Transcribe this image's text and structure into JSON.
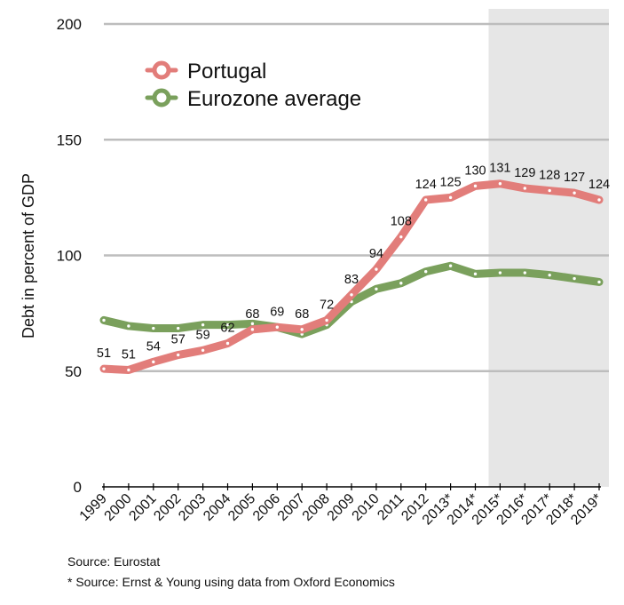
{
  "chart_data": {
    "type": "line",
    "title": "",
    "xlabel": "",
    "ylabel": "Debt in percent of GDP",
    "ylim": [
      0,
      200
    ],
    "yticks": [
      0,
      50,
      100,
      150,
      200
    ],
    "grid": true,
    "legend_placement": "top-left",
    "categories": [
      "1999",
      "2000",
      "2001",
      "2002",
      "2003",
      "2004",
      "2005",
      "2006",
      "2007",
      "2008",
      "2009",
      "2010",
      "2011",
      "2012",
      "2013*",
      "2014*",
      "2015*",
      "2016*",
      "2017*",
      "2018*",
      "2019*"
    ],
    "forecast_shading_from": "2015*",
    "series": [
      {
        "name": "Portugal",
        "color": "#e27d7a",
        "values": [
          51,
          50.5,
          54,
          57,
          59,
          62,
          68,
          69,
          68,
          72,
          83,
          94,
          108,
          124,
          125,
          130,
          131,
          129,
          128,
          127,
          124
        ],
        "labels": [
          "51",
          "51",
          "54",
          "57",
          "59",
          "62",
          "68",
          "69",
          "68",
          "72",
          "83",
          "94",
          "108",
          "124",
          "125",
          "130",
          "131",
          "129",
          "128",
          "127",
          "124"
        ]
      },
      {
        "name": "Eurozone average",
        "color": "#7aa05c",
        "values": [
          72,
          69.5,
          68.5,
          68.5,
          70,
          70,
          70.5,
          69,
          66,
          70,
          80,
          85.5,
          88,
          93,
          95.5,
          92,
          92.5,
          92.5,
          91.5,
          90,
          88.5
        ]
      }
    ]
  },
  "sources": {
    "line1": "Source: Eurostat",
    "line2": "* Source: Ernst & Young using data from Oxford Economics"
  }
}
